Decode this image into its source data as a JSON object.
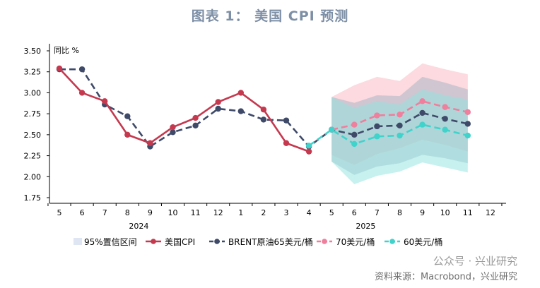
{
  "header": {
    "title": "图表 1：  美国 CPI 预测"
  },
  "footer": {
    "source": "资料来源：Macrobond，兴业研究",
    "watermark": "公众号 · 兴业研究"
  },
  "chart_data": {
    "type": "line",
    "title": "图表 1：  美国 CPI 预测",
    "ylabel": "同比 %",
    "ylim": [
      1.75,
      3.5
    ],
    "yticks": [
      "3.50",
      "3.25",
      "3.00",
      "2.75",
      "2.50",
      "2.25",
      "2.00",
      "1.75"
    ],
    "ytick_values": [
      3.5,
      3.25,
      3.0,
      2.75,
      2.5,
      2.25,
      2.0,
      1.75
    ],
    "x_labels": [
      "5",
      "6",
      "7",
      "8",
      "9",
      "10",
      "11",
      "12",
      "1",
      "2",
      "3",
      "4",
      "5",
      "6",
      "7",
      "8",
      "9",
      "10",
      "11",
      "12"
    ],
    "years": [
      {
        "label": "2024",
        "center_index": 3.5
      },
      {
        "label": "2025",
        "center_index": 13.5
      }
    ],
    "series": [
      {
        "name": "美国CPI",
        "key": "cpi",
        "color": "#c5394f",
        "dash": false,
        "points": [
          [
            0,
            3.29
          ],
          [
            1,
            3.0
          ],
          [
            2,
            2.9
          ],
          [
            3,
            2.5
          ],
          [
            4,
            2.4
          ],
          [
            5,
            2.59
          ],
          [
            6,
            2.7
          ],
          [
            7,
            2.89
          ],
          [
            8,
            3.0
          ],
          [
            9,
            2.8
          ],
          [
            10,
            2.4
          ],
          [
            11,
            2.3
          ]
        ]
      },
      {
        "name": "BRENT原油65美元/桶",
        "key": "brent65",
        "color": "#3f4a69",
        "dash": true,
        "points": [
          [
            0,
            3.28
          ],
          [
            1,
            3.28
          ],
          [
            2,
            2.86
          ],
          [
            3,
            2.72
          ],
          [
            4,
            2.36
          ],
          [
            5,
            2.53
          ],
          [
            6,
            2.61
          ],
          [
            7,
            2.81
          ],
          [
            8,
            2.78
          ],
          [
            9,
            2.68
          ],
          [
            10,
            2.67
          ],
          [
            11,
            2.36
          ],
          [
            12,
            2.56
          ],
          [
            13,
            2.5
          ],
          [
            14,
            2.6
          ],
          [
            15,
            2.61
          ],
          [
            16,
            2.76
          ],
          [
            17,
            2.69
          ],
          [
            18,
            2.63
          ]
        ]
      },
      {
        "name": "70美元/桶",
        "key": "brent70",
        "color": "#ef7f9c",
        "dash": true,
        "points": [
          [
            12,
            2.56
          ],
          [
            13,
            2.62
          ],
          [
            14,
            2.73
          ],
          [
            15,
            2.74
          ],
          [
            16,
            2.9
          ],
          [
            17,
            2.83
          ],
          [
            18,
            2.77
          ]
        ]
      },
      {
        "name": "60美元/桶",
        "key": "brent60",
        "color": "#3fd3cc",
        "dash": true,
        "points": [
          [
            11,
            2.37
          ],
          [
            12,
            2.56
          ],
          [
            13,
            2.39
          ],
          [
            14,
            2.48
          ],
          [
            15,
            2.49
          ],
          [
            16,
            2.62
          ],
          [
            17,
            2.56
          ],
          [
            18,
            2.49
          ]
        ]
      }
    ],
    "bands": [
      {
        "key": "band70",
        "color": "#f9b5bf",
        "opacity": 0.5,
        "upper": [
          2.95,
          3.09,
          3.19,
          3.14,
          3.35,
          3.28,
          3.22
        ],
        "lower": [
          2.26,
          2.14,
          2.27,
          2.34,
          2.44,
          2.38,
          2.3
        ]
      },
      {
        "key": "band65",
        "color": "#a9b6c5",
        "opacity": 0.55,
        "upper": [
          2.95,
          2.88,
          2.97,
          2.96,
          3.19,
          3.12,
          3.04
        ],
        "lower": [
          2.18,
          2.02,
          2.12,
          2.16,
          2.26,
          2.22,
          2.16
        ]
      },
      {
        "key": "band60",
        "color": "#8fe3e0",
        "opacity": 0.5,
        "upper": [
          2.95,
          2.82,
          2.9,
          2.86,
          3.04,
          2.97,
          2.92
        ],
        "lower": [
          2.18,
          1.91,
          2.01,
          2.06,
          2.17,
          2.11,
          2.05
        ]
      }
    ],
    "band_start_index": 12,
    "legend": [
      {
        "label": "95%置信区间",
        "kind": "band",
        "color": "#dfe5f2"
      },
      {
        "label": "美国CPI",
        "kind": "solid",
        "color": "#c5394f"
      },
      {
        "label": "BRENT原油65美元/桶",
        "kind": "dash",
        "color": "#3f4a69"
      },
      {
        "label": "70美元/桶",
        "kind": "dash",
        "color": "#ef7f9c"
      },
      {
        "label": "60美元/桶",
        "kind": "dash",
        "color": "#3fd3cc"
      }
    ],
    "legend_position": "bottom"
  }
}
